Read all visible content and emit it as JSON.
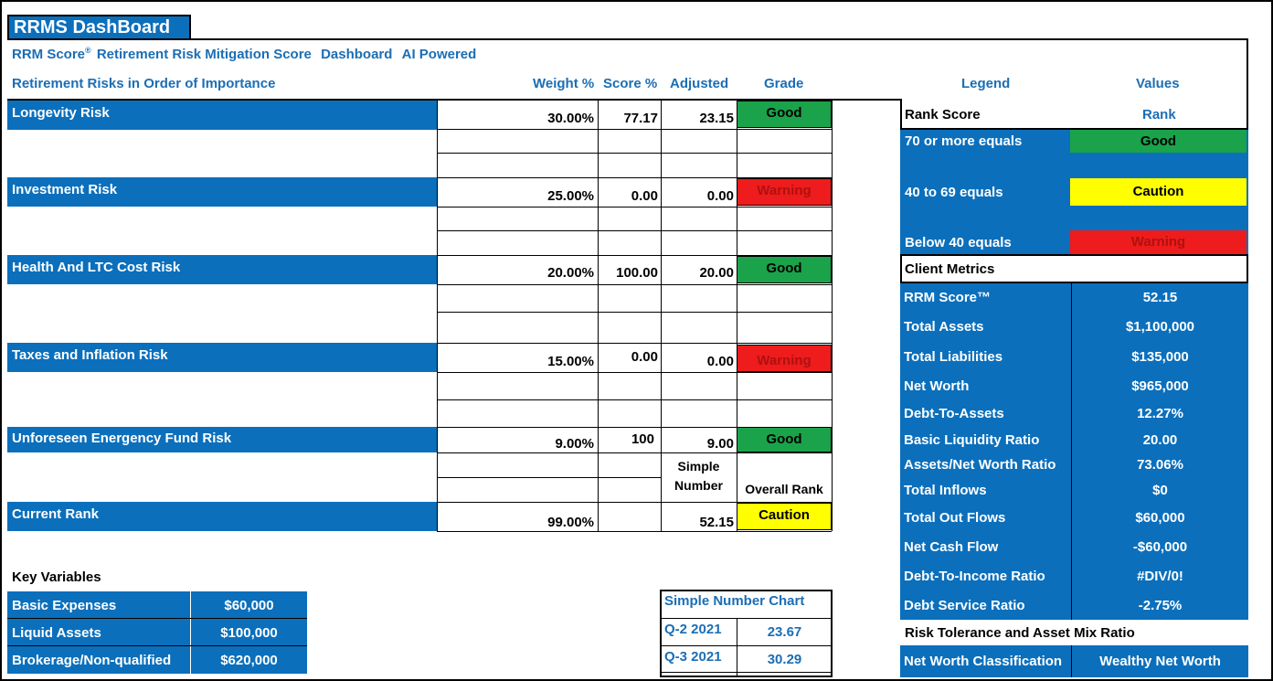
{
  "window": {
    "title": "RRMS DashBoard"
  },
  "subtitle": {
    "score": "RRM Score",
    "reg": "®",
    "rest": "Retirement Risk Mitigation Score",
    "dashboard": "Dashboard",
    "ai": "AI Powered"
  },
  "headers": {
    "risks": "Retirement Risks in Order of Importance",
    "weight": "Weight %",
    "score": "Score %",
    "adjusted": "Adjusted",
    "grade": "Grade",
    "legend": "Legend",
    "values": "Values"
  },
  "risks": [
    {
      "name": "Longevity Risk",
      "weight": "30.00%",
      "score": "77.17",
      "adjusted": "23.15",
      "grade": "Good"
    },
    {
      "name": "Investment Risk",
      "weight": "25.00%",
      "score": "0.00",
      "adjusted": "0.00",
      "grade": "Warning"
    },
    {
      "name": "Health And LTC Cost Risk",
      "weight": "20.00%",
      "score": "100.00",
      "adjusted": "20.00",
      "grade": "Good"
    },
    {
      "name": "Taxes and Inflation Risk",
      "weight": "15.00%",
      "score": "0.00",
      "adjusted": "0.00",
      "grade": "Warning"
    },
    {
      "name": "Unforeseen Energency Fund Risk",
      "weight": "9.00%",
      "score": "100",
      "adjusted": "9.00",
      "grade": "Good"
    }
  ],
  "simple_number": {
    "line1": "Simple",
    "line2": "Number",
    "overall": "Overall Rank"
  },
  "current_rank": {
    "label": "Current Rank",
    "weight": "99.00%",
    "adjusted": "52.15",
    "grade": "Caution"
  },
  "legend": {
    "rank_score": "Rank Score",
    "rank": "Rank",
    "rows": [
      {
        "label": "70 or more equals",
        "grade": "Good"
      },
      {
        "label": "40 to 69 equals",
        "grade": "Caution"
      },
      {
        "label": "Below 40 equals",
        "grade": "Warning"
      }
    ],
    "colors": {
      "good": "#1aa34a",
      "caution": "#ffff00",
      "warning": "#ee1c1c",
      "blue": "#0b6fbc"
    }
  },
  "client_metrics": {
    "title": "Client Metrics",
    "rows": [
      {
        "label": "RRM Score™",
        "value": "52.15"
      },
      {
        "label": "Total Assets",
        "value": "$1,100,000"
      },
      {
        "label": "Total Liabilities",
        "value": "$135,000"
      },
      {
        "label": "Net Worth",
        "value": "$965,000"
      },
      {
        "label": "Debt-To-Assets",
        "value": "12.27%"
      },
      {
        "label": "Basic Liquidity Ratio",
        "value": "20.00"
      },
      {
        "label": "Assets/Net Worth Ratio",
        "value": "73.06%"
      },
      {
        "label": "Total Inflows",
        "value": "$0"
      },
      {
        "label": "Total Out Flows",
        "value": "$60,000"
      },
      {
        "label": "Net Cash Flow",
        "value": "-$60,000"
      },
      {
        "label": "Debt-To-Income Ratio",
        "value": "#DIV/0!"
      },
      {
        "label": "Debt Service Ratio",
        "value": "-2.75%"
      }
    ]
  },
  "risk_tolerance": {
    "title": "Risk Tolerance and Asset Mix Ratio",
    "label": "Net Worth Classification",
    "value": "Wealthy Net Worth"
  },
  "key_variables": {
    "title": "Key Variables",
    "rows": [
      {
        "label": "Basic Expenses",
        "value": "$60,000"
      },
      {
        "label": "Liquid Assets",
        "value": "$100,000"
      },
      {
        "label": "Brokerage/Non-qualified",
        "value": "$620,000"
      }
    ]
  },
  "simple_chart": {
    "title": "Simple Number Chart",
    "rows": [
      {
        "label": "Q-2 2021",
        "value": "23.67"
      },
      {
        "label": "Q-3 2021",
        "value": "30.29"
      }
    ]
  }
}
